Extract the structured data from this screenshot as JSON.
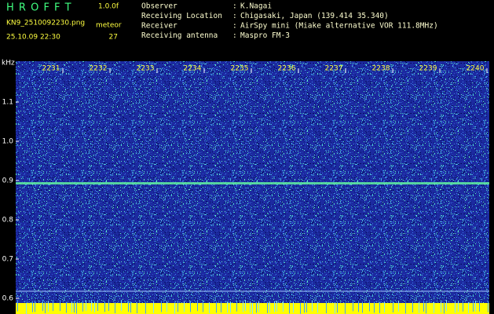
{
  "header": {
    "app_title": "H R O F F T",
    "version": "1.0.0f",
    "filename": "KN9_2510092230.png",
    "datetime": "25.10.09 22:30",
    "meteor_label": "meteor",
    "meteor_count": "27"
  },
  "info": {
    "separator": ":",
    "rows": [
      {
        "label": "Observer",
        "value": "K.Nagai"
      },
      {
        "label": "Receiving Location",
        "value": "Chigasaki, Japan (139.414 35.340)"
      },
      {
        "label": "Receiver",
        "value": "AirSpy mini (Miake alternative VOR 111.8MHz)"
      },
      {
        "label": "Receiving antenna",
        "value": "Maspro FM-3"
      }
    ]
  },
  "axis": {
    "unit": "kHz",
    "y_ticks": [
      "1.1",
      "1.0",
      "0.9",
      "0.8",
      "0.7",
      "0.6"
    ],
    "x_ticks": [
      "2231",
      "2232",
      "2233",
      "2234",
      "2235",
      "2236",
      "2237",
      "2238",
      "2239",
      "2240"
    ]
  }
}
